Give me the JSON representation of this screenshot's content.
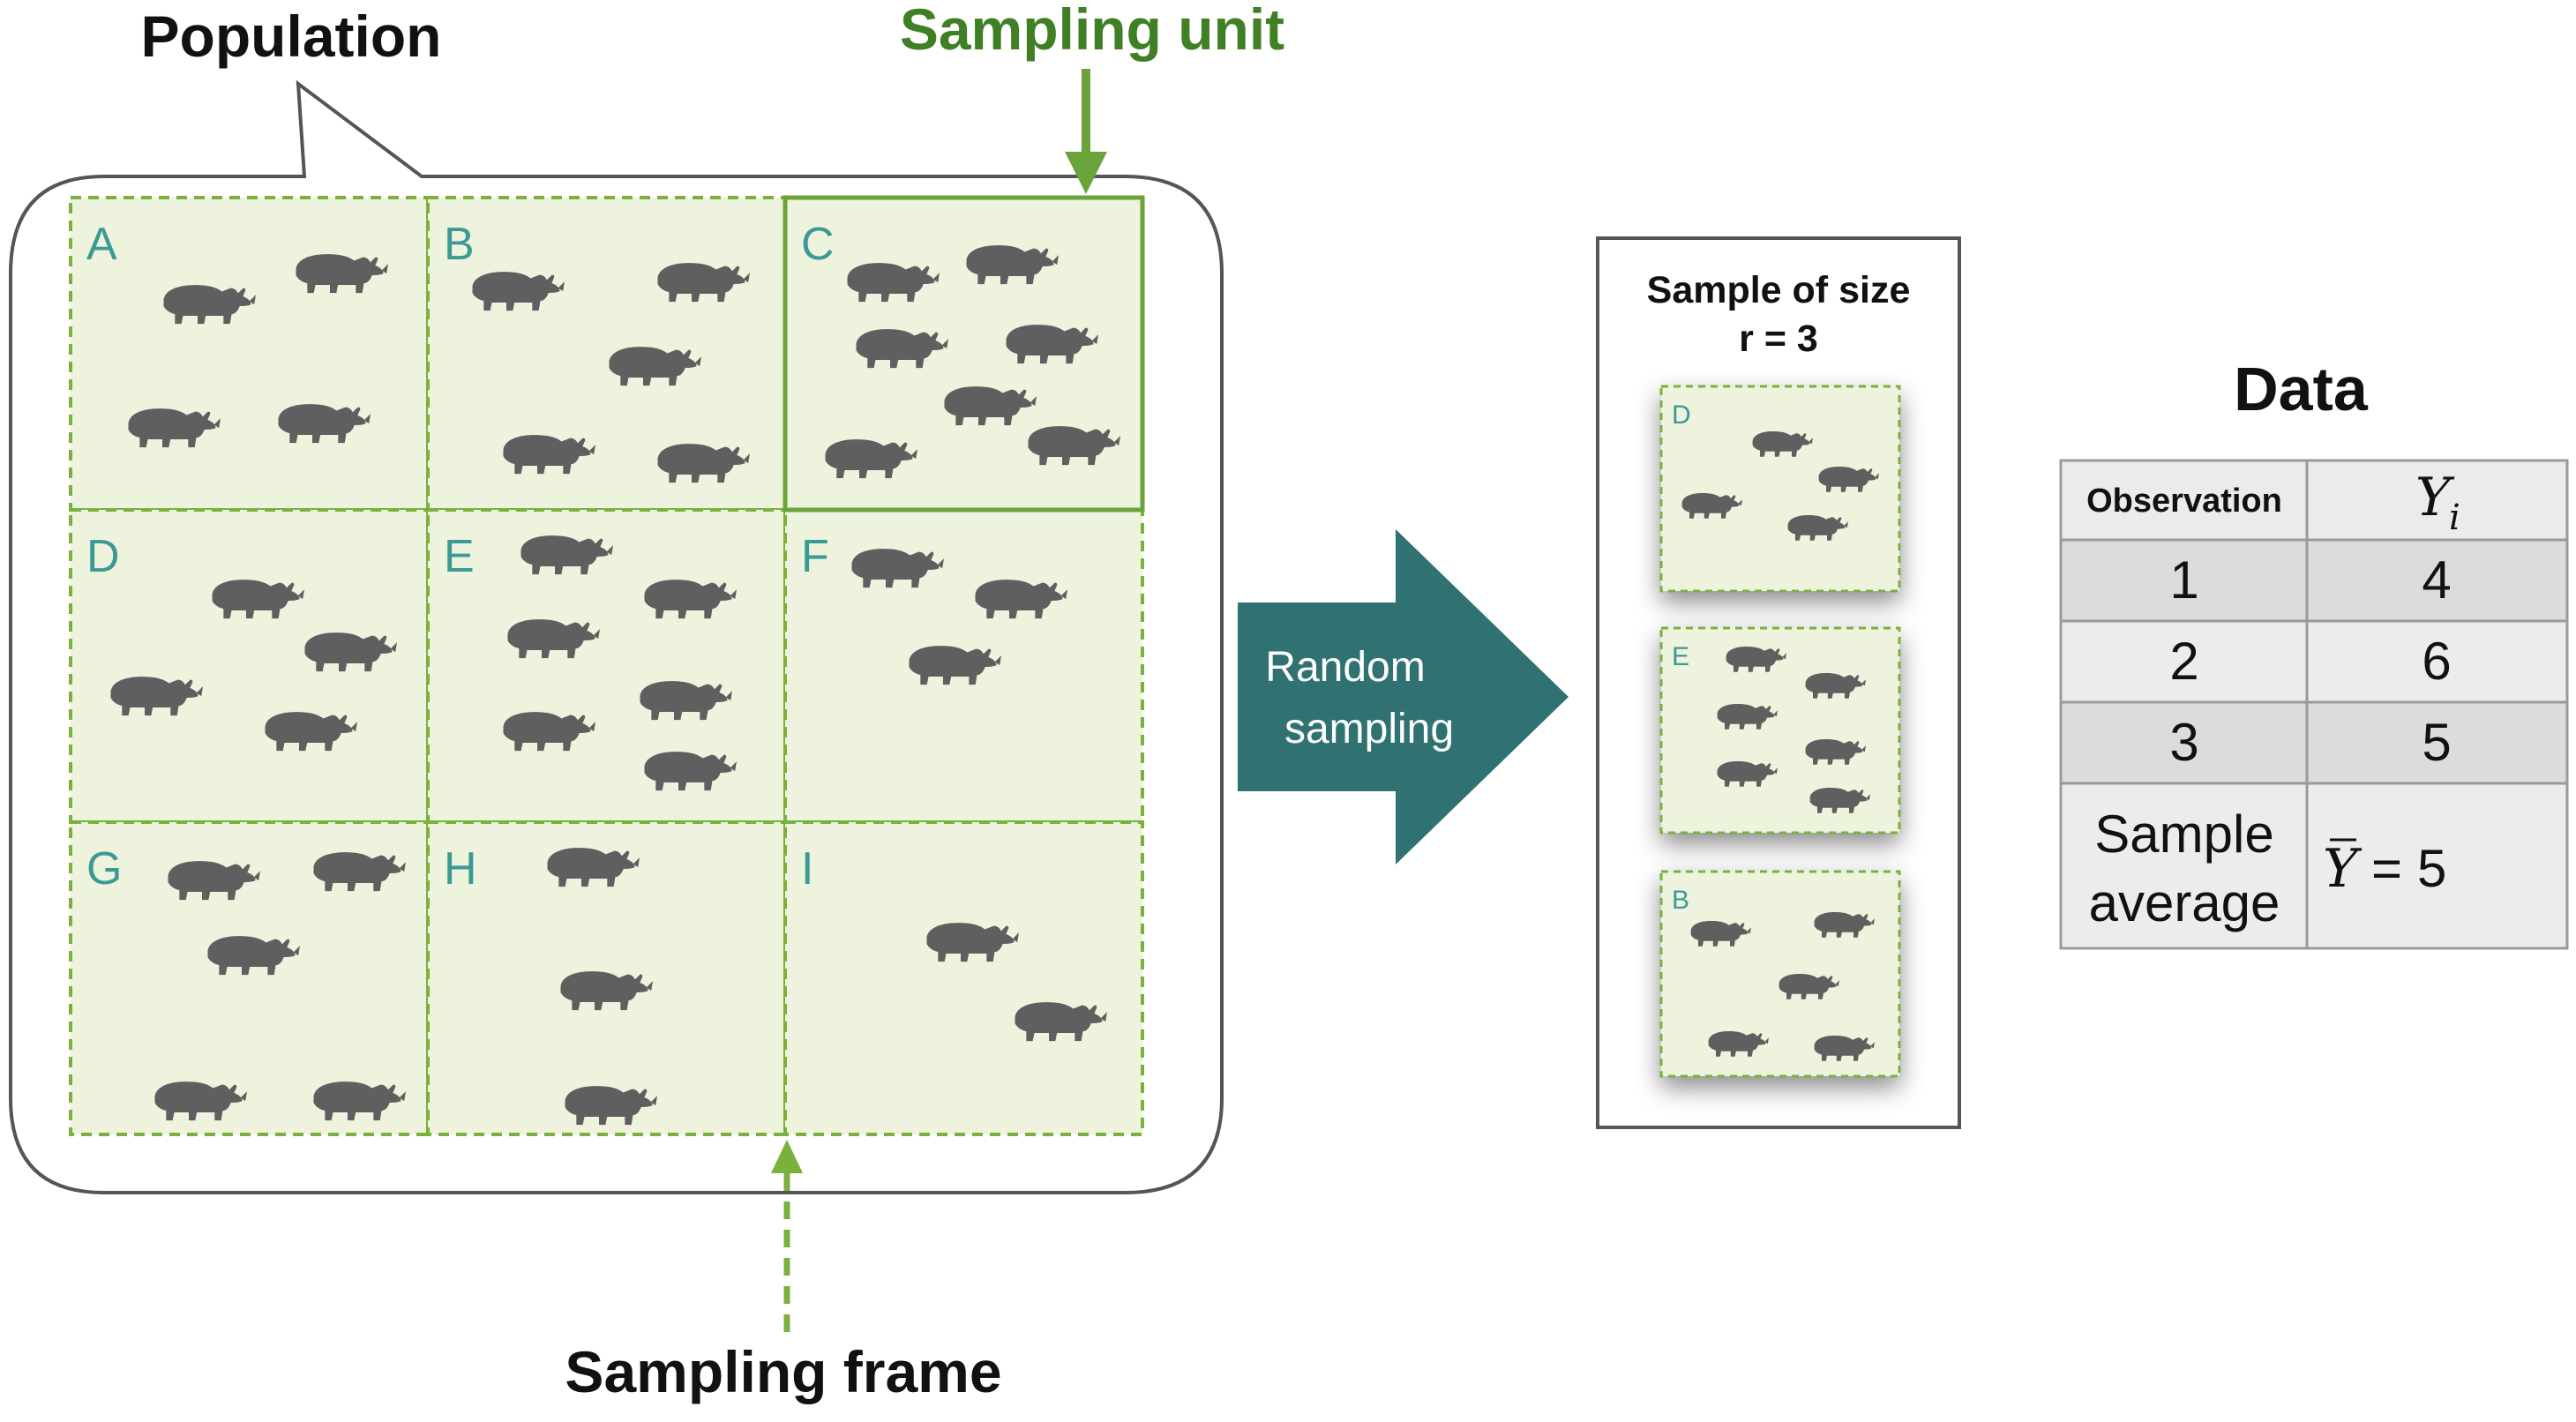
{
  "labels": {
    "population": "Population",
    "sampling_unit": "Sampling unit",
    "sampling_frame": "Sampling frame",
    "random_sampling_line1": "Random",
    "random_sampling_line2": "sampling",
    "sample_title_line1": "Sample of size",
    "sample_title_line2": "r = 3",
    "data_title": "Data"
  },
  "grid": {
    "cells": [
      {
        "letter": "A",
        "rhinos": 4
      },
      {
        "letter": "B",
        "rhinos": 5
      },
      {
        "letter": "C",
        "rhinos": 7,
        "highlighted": true
      },
      {
        "letter": "D",
        "rhinos": 4
      },
      {
        "letter": "E",
        "rhinos": 6
      },
      {
        "letter": "F",
        "rhinos": 3
      },
      {
        "letter": "G",
        "rhinos": 5
      },
      {
        "letter": "H",
        "rhinos": 3
      },
      {
        "letter": "I",
        "rhinos": 2
      }
    ]
  },
  "sample": {
    "units": [
      {
        "letter": "D",
        "rhinos": 4
      },
      {
        "letter": "E",
        "rhinos": 6
      },
      {
        "letter": "B",
        "rhinos": 5
      }
    ]
  },
  "table": {
    "header_observation": "Observation",
    "header_y": "Y",
    "header_y_sub": "i",
    "rows": [
      {
        "obs": "1",
        "y": "4"
      },
      {
        "obs": "2",
        "y": "6"
      },
      {
        "obs": "3",
        "y": "5"
      }
    ],
    "average_label_line1": "Sample",
    "average_label_line2": "average",
    "average_symbol": "Y",
    "average_equals": "=",
    "average_value": "5"
  },
  "colors": {
    "cell_fill": "#eef3de",
    "dashed_green": "#7ab03c",
    "solid_green": "#6aa33a",
    "title_green": "#3f7f25",
    "teal": "#2f7271",
    "rhino": "#5f5f5f",
    "outline": "#555555"
  }
}
